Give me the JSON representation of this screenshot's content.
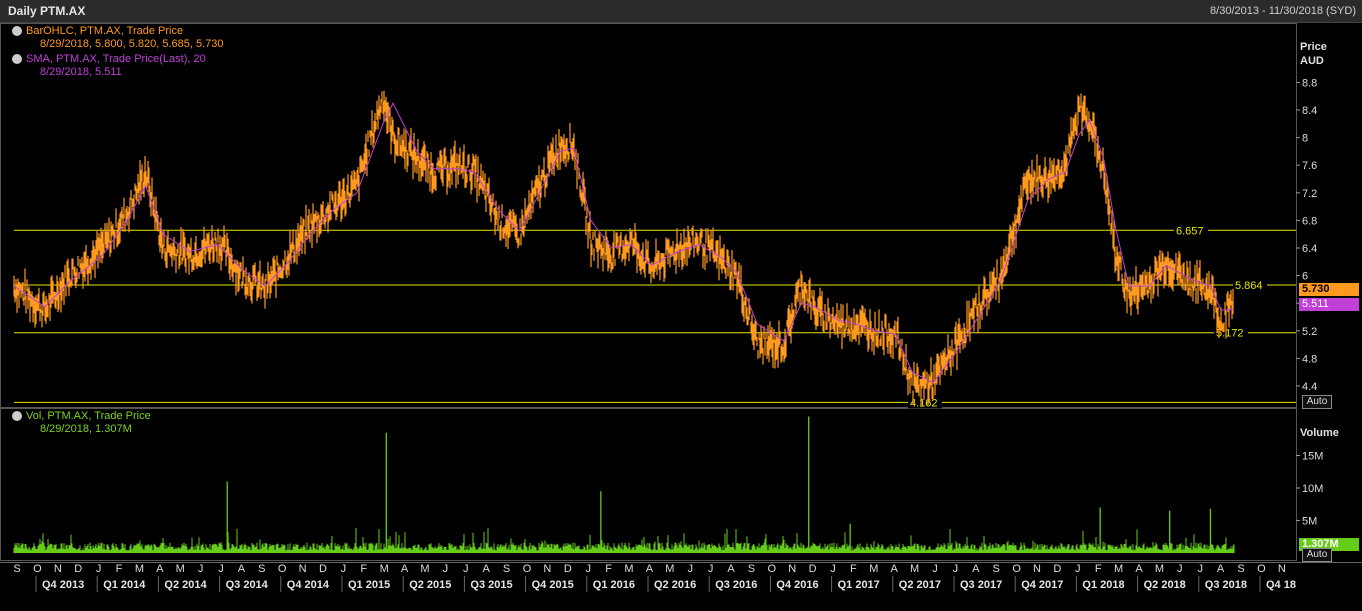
{
  "header": {
    "title": "Daily PTM.AX",
    "range": "8/30/2013 - 11/30/2018 (SYD)"
  },
  "legend": {
    "bar_title": "BarOHLC, PTM.AX, Trade Price",
    "bar_values": "8/29/2018, 5.800, 5.820, 5.685, 5.730",
    "sma_title": "SMA, PTM.AX, Trade Price(Last), 20",
    "sma_values": "8/29/2018, 5.511",
    "vol_title": "Vol, PTM.AX, Trade Price",
    "vol_values": "8/29/2018, 1.307M"
  },
  "price_axis": {
    "label1": "Price",
    "label2": "AUD",
    "ticks": [
      "8.8",
      "8.4",
      "8",
      "7.6",
      "7.2",
      "6.8",
      "6.4",
      "6",
      "5.6",
      "5.2",
      "4.8",
      "4.4"
    ],
    "auto_label": "Auto",
    "last_price": "5.730",
    "last_sma": "5.511"
  },
  "volume_axis": {
    "label": "Volume",
    "ticks": [
      "15M",
      "10M",
      "5M"
    ],
    "last_volume": "1.307M",
    "auto_label": "Auto"
  },
  "h_lines": [
    {
      "value": 6.657,
      "label": "6.657"
    },
    {
      "value": 5.864,
      "label": "5.864"
    },
    {
      "value": 5.172,
      "label": "5.172"
    },
    {
      "value": 4.162,
      "label": "4.162"
    }
  ],
  "colors": {
    "price": "#ff9a1f",
    "sma": "#c040d8",
    "volume": "#66cc1a",
    "lines": "#e6e600",
    "legend_bar": "#ff9a1f",
    "legend_sma": "#c040d8",
    "legend_vol": "#7fd320"
  },
  "x_axis": {
    "months": [
      "S",
      "O",
      "N",
      "D",
      "J",
      "F",
      "M",
      "A",
      "M",
      "J",
      "J",
      "A",
      "S",
      "O",
      "N",
      "D",
      "J",
      "F",
      "M",
      "A",
      "M",
      "J",
      "J",
      "A",
      "S",
      "O",
      "N",
      "D",
      "J",
      "F",
      "M",
      "A",
      "M",
      "J",
      "J",
      "A",
      "S",
      "O",
      "N",
      "D",
      "J",
      "F",
      "M",
      "A",
      "M",
      "J",
      "J",
      "A",
      "S",
      "O",
      "N",
      "D",
      "J",
      "F",
      "M",
      "A",
      "M",
      "J",
      "J",
      "A",
      "S",
      "O",
      "N"
    ],
    "quarters": [
      "Q4 2013",
      "Q1 2014",
      "Q2 2014",
      "Q3 2014",
      "Q4 2014",
      "Q1 2015",
      "Q2 2015",
      "Q3 2015",
      "Q4 2015",
      "Q1 2016",
      "Q2 2016",
      "Q3 2016",
      "Q4 2016",
      "Q1 2017",
      "Q2 2017",
      "Q3 2017",
      "Q4 2017",
      "Q1 2018",
      "Q2 2018",
      "Q3 2018",
      "Q4 18"
    ]
  },
  "chart_data": {
    "type": "line",
    "title": "Daily PTM.AX",
    "ylabel": "Price AUD",
    "ylim": [
      4.2,
      9.3
    ],
    "volume_ylim": [
      0,
      22000000
    ],
    "grid": false,
    "series": [
      {
        "name": "BarOHLC, PTM.AX, Trade Price",
        "x": [
          "2013-08-30",
          "2013-10-15",
          "2013-11-20",
          "2014-01-10",
          "2014-02-15",
          "2014-03-15",
          "2014-04-10",
          "2014-05-20",
          "2014-07-01",
          "2014-08-05",
          "2014-09-10",
          "2014-10-15",
          "2014-11-15",
          "2014-12-20",
          "2015-01-25",
          "2015-03-05",
          "2015-03-20",
          "2015-04-25",
          "2015-05-20",
          "2015-06-25",
          "2015-07-20",
          "2015-08-25",
          "2015-09-25",
          "2015-10-20",
          "2015-11-25",
          "2015-12-15",
          "2016-01-10",
          "2016-02-10",
          "2016-03-10",
          "2016-04-10",
          "2016-05-20",
          "2016-06-20",
          "2016-07-25",
          "2016-08-15",
          "2016-09-15",
          "2016-10-25",
          "2016-11-20",
          "2016-12-10",
          "2017-01-15",
          "2017-02-10",
          "2017-03-10",
          "2017-04-10",
          "2017-05-05",
          "2017-06-05",
          "2017-07-10",
          "2017-08-15",
          "2017-09-15",
          "2017-10-25",
          "2017-11-25",
          "2017-12-20",
          "2018-01-10",
          "2018-01-25",
          "2018-02-15",
          "2018-03-05",
          "2018-03-25",
          "2018-04-25",
          "2018-05-20",
          "2018-06-25",
          "2018-07-25",
          "2018-08-10",
          "2018-08-29"
        ],
        "y": [
          5.85,
          5.5,
          6.0,
          6.4,
          6.9,
          7.5,
          6.4,
          6.3,
          6.5,
          6.0,
          5.8,
          6.3,
          6.7,
          7.0,
          7.3,
          8.6,
          8.0,
          7.7,
          7.5,
          7.6,
          7.5,
          6.8,
          6.6,
          7.2,
          7.9,
          7.9,
          6.5,
          6.3,
          6.5,
          6.1,
          6.4,
          6.5,
          6.2,
          6.0,
          5.0,
          5.0,
          5.9,
          5.5,
          5.3,
          5.3,
          5.2,
          5.15,
          4.4,
          4.45,
          5.0,
          5.6,
          6.0,
          7.4,
          7.4,
          7.6,
          8.4,
          8.3,
          7.5,
          6.3,
          5.7,
          5.9,
          6.2,
          5.9,
          5.8,
          5.3,
          5.73
        ]
      },
      {
        "name": "SMA, PTM.AX, Trade Price(Last), 20",
        "x": [
          "2013-08-30",
          "2013-10-15",
          "2013-11-20",
          "2014-01-10",
          "2014-02-15",
          "2014-03-15",
          "2014-04-10",
          "2014-05-20",
          "2014-07-01",
          "2014-08-05",
          "2014-09-10",
          "2014-10-15",
          "2014-11-15",
          "2014-12-20",
          "2015-01-25",
          "2015-03-05",
          "2015-03-20",
          "2015-04-25",
          "2015-05-20",
          "2015-06-25",
          "2015-07-20",
          "2015-08-25",
          "2015-09-25",
          "2015-10-20",
          "2015-11-25",
          "2015-12-15",
          "2016-01-10",
          "2016-02-10",
          "2016-03-10",
          "2016-04-10",
          "2016-05-20",
          "2016-06-20",
          "2016-07-25",
          "2016-08-15",
          "2016-09-15",
          "2016-10-25",
          "2016-11-20",
          "2016-12-10",
          "2017-01-15",
          "2017-02-10",
          "2017-03-10",
          "2017-04-10",
          "2017-05-05",
          "2017-06-05",
          "2017-07-10",
          "2017-08-15",
          "2017-09-15",
          "2017-10-25",
          "2017-11-25",
          "2017-12-20",
          "2018-01-10",
          "2018-01-25",
          "2018-02-15",
          "2018-03-05",
          "2018-03-25",
          "2018-04-25",
          "2018-05-20",
          "2018-06-25",
          "2018-07-25",
          "2018-08-10",
          "2018-08-29"
        ],
        "y": [
          5.85,
          5.55,
          5.9,
          6.3,
          6.8,
          7.3,
          6.6,
          6.35,
          6.45,
          6.1,
          5.85,
          6.2,
          6.6,
          6.95,
          7.2,
          8.2,
          8.5,
          7.8,
          7.55,
          7.55,
          7.5,
          6.95,
          6.65,
          7.1,
          7.8,
          7.85,
          6.8,
          6.4,
          6.45,
          6.15,
          6.35,
          6.45,
          6.25,
          6.05,
          5.3,
          5.05,
          5.6,
          5.55,
          5.35,
          5.3,
          5.2,
          5.15,
          4.6,
          4.45,
          4.9,
          5.45,
          5.95,
          7.1,
          7.4,
          7.5,
          8.05,
          8.25,
          7.7,
          6.7,
          5.85,
          5.85,
          6.15,
          5.95,
          5.85,
          5.5,
          5.51
        ]
      },
      {
        "name": "Vol, PTM.AX, Trade Price",
        "x": [
          "2015-03-10",
          "2014-07-15",
          "2016-12-01",
          "2016-01-25",
          "2018-02-10",
          "2018-05-25",
          "2018-07-25",
          "2017-02-01",
          "2018-08-29"
        ],
        "y": [
          18500000,
          11000000,
          21000000,
          9500000,
          7000000,
          6500000,
          6800000,
          4500000,
          1307000
        ]
      }
    ]
  }
}
